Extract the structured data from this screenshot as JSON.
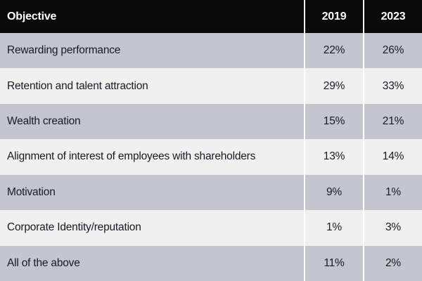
{
  "table": {
    "header": {
      "objective": "Objective",
      "col_2019": "2019",
      "col_2023": "2023"
    },
    "rows": [
      {
        "objective": "Rewarding performance",
        "y2019": "22%",
        "y2023": "26%"
      },
      {
        "objective": "Retention and talent attraction",
        "y2019": "29%",
        "y2023": "33%"
      },
      {
        "objective": "Wealth creation",
        "y2019": "15%",
        "y2023": "21%"
      },
      {
        "objective": "Alignment of interest of employees with shareholders",
        "y2019": "13%",
        "y2023": "14%"
      },
      {
        "objective": "Motivation",
        "y2019": "9%",
        "y2023": "1%"
      },
      {
        "objective": "Corporate Identity/reputation",
        "y2019": "1%",
        "y2023": "3%"
      },
      {
        "objective": "All of the above",
        "y2019": "11%",
        "y2023": "2%"
      }
    ]
  },
  "colors": {
    "header_bg": "#0a0a0a",
    "header_text": "#ffffff",
    "row_gray": "#c5c5cd",
    "row_light": "#f0f0f1",
    "separator": "#ffffff",
    "body_text": "#1a1a24"
  },
  "chart_data": {
    "type": "table",
    "title": "Objective",
    "columns": [
      "Objective",
      "2019",
      "2023"
    ],
    "categories": [
      "Rewarding performance",
      "Retention and talent attraction",
      "Wealth creation",
      "Alignment of interest of employees with shareholders",
      "Motivation",
      "Corporate Identity/reputation",
      "All of the above"
    ],
    "series": [
      {
        "name": "2019",
        "values": [
          22,
          29,
          15,
          13,
          9,
          1,
          11
        ]
      },
      {
        "name": "2023",
        "values": [
          26,
          33,
          21,
          14,
          1,
          3,
          2
        ]
      }
    ],
    "unit": "%"
  }
}
